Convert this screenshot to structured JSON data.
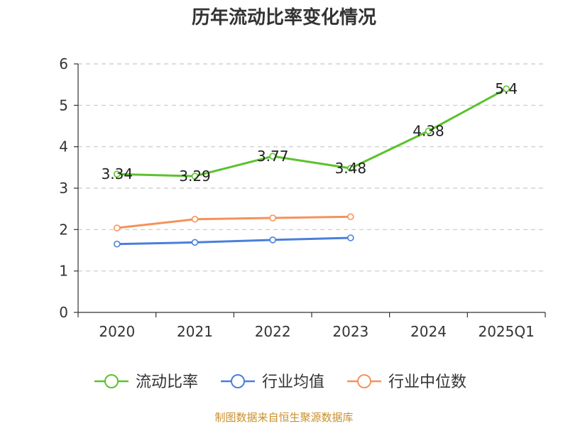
{
  "chart_data": {
    "type": "line",
    "title": "历年流动比率变化情况",
    "xlabel": "",
    "ylabel": "",
    "categories": [
      "2020",
      "2021",
      "2022",
      "2023",
      "2024",
      "2025Q1"
    ],
    "ylim": [
      0,
      6
    ],
    "yticks": [
      "0",
      "1",
      "2",
      "3",
      "4",
      "5",
      "6"
    ],
    "grid": true,
    "legend_position": "bottom",
    "series": [
      {
        "name": "流动比率",
        "color": "#5cc22e",
        "values": [
          3.34,
          3.29,
          3.77,
          3.48,
          4.38,
          5.4
        ],
        "labels": [
          "3.34",
          "3.29",
          "3.77",
          "3.48",
          "4.38",
          "5.4"
        ]
      },
      {
        "name": "行业均值",
        "color": "#4a7fdb",
        "values": [
          1.65,
          1.69,
          1.75,
          1.8,
          null,
          null
        ]
      },
      {
        "name": "行业中位数",
        "color": "#f5925a",
        "values": [
          2.04,
          2.25,
          2.28,
          2.31,
          null,
          null
        ]
      }
    ]
  },
  "footer": "制图数据来自恒生聚源数据库"
}
